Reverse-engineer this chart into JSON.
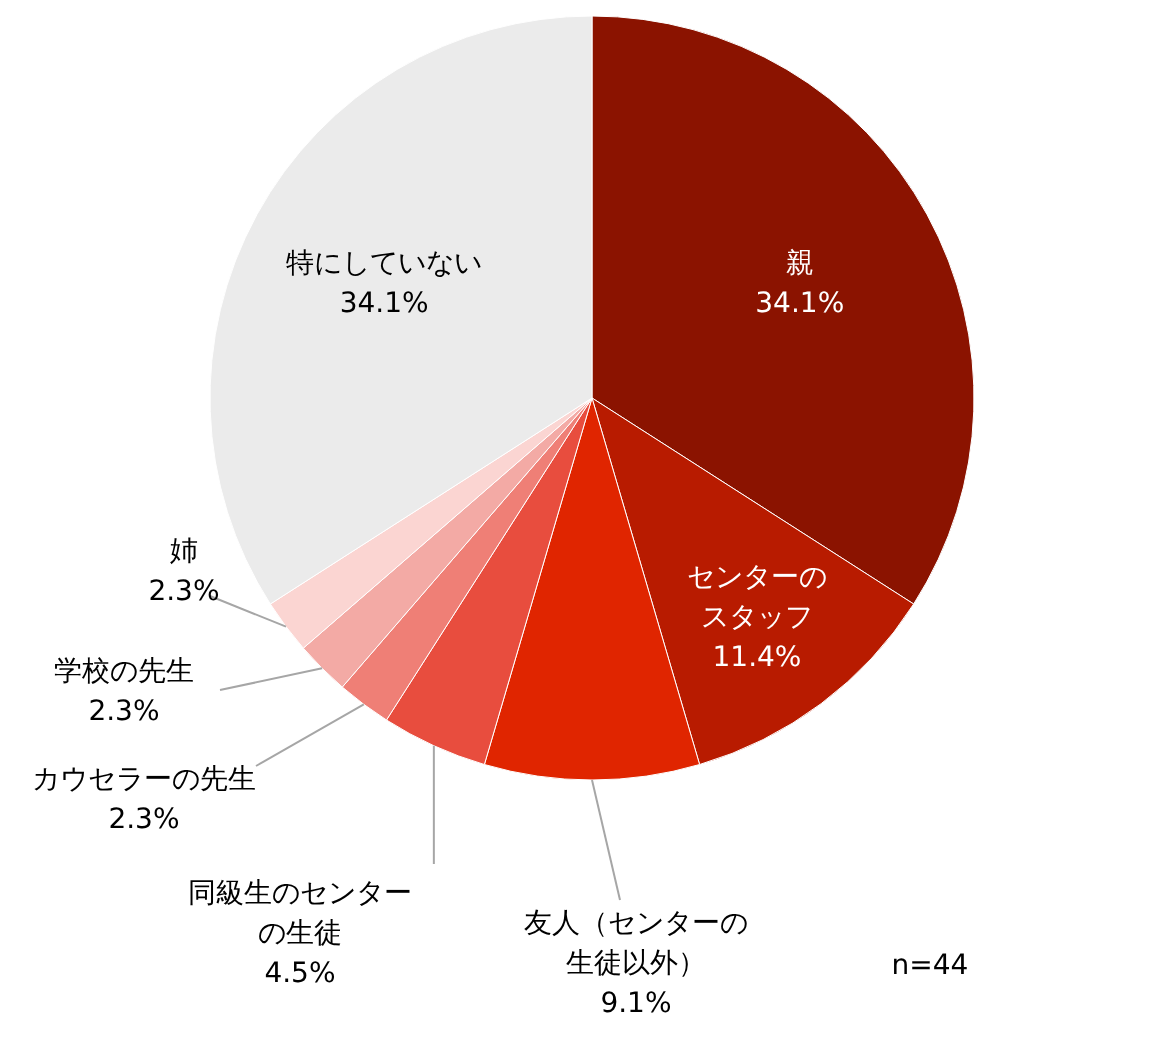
{
  "chart_data": {
    "type": "pie",
    "categories": [
      "親",
      "センターのスタッフ",
      "友人（センターの生徒以外）",
      "同級生のセンターの生徒",
      "カウセラーの先生",
      "学校の先生",
      "姉",
      "特にしていない"
    ],
    "values": [
      34.1,
      11.4,
      9.1,
      4.5,
      2.3,
      2.3,
      2.3,
      34.1
    ],
    "value_labels": [
      "34.1%",
      "11.4%",
      "9.1%",
      "4.5%",
      "2.3%",
      "2.3%",
      "2.3%",
      "34.1%"
    ],
    "colors": [
      "#8b1300",
      "#b81b00",
      "#e02500",
      "#e84d3e",
      "#ef7f76",
      "#f3aaa5",
      "#fbd5d2",
      "#ebebeb"
    ],
    "annotations": [
      "n=44"
    ]
  }
}
